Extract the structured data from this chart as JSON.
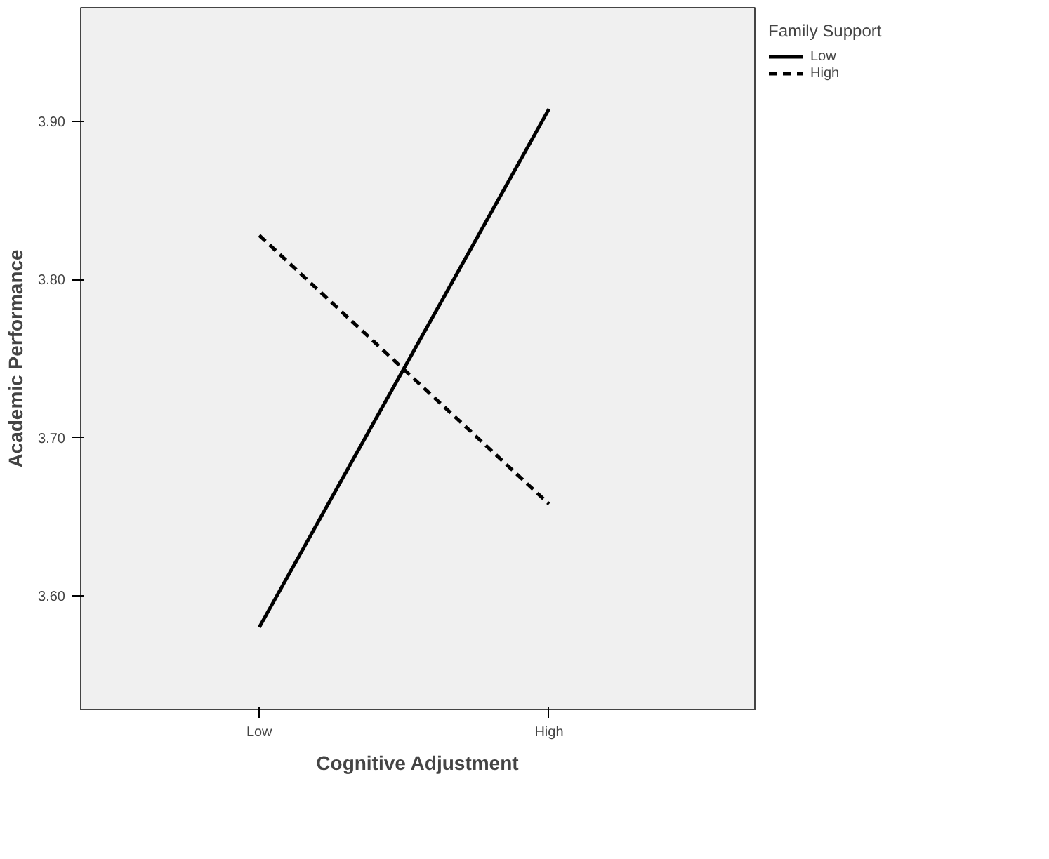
{
  "chart_data": {
    "type": "line",
    "xlabel": "Cognitive Adjustment",
    "ylabel": "Academic Performance",
    "legend_title": "Family Support",
    "categories": [
      "Low",
      "High"
    ],
    "series": [
      {
        "name": "Low",
        "color": "#000000",
        "line_style": "solid",
        "values": [
          3.58,
          3.908
        ]
      },
      {
        "name": "High",
        "color": "#000000",
        "line_style": "dashed",
        "values": [
          3.828,
          3.658
        ]
      }
    ],
    "ylim": [
      3.528,
      3.972
    ],
    "yticks": [
      {
        "value": 3.6,
        "label": "3.60"
      },
      {
        "value": 3.7,
        "label": "3.70"
      },
      {
        "value": 3.8,
        "label": "3.80"
      },
      {
        "value": 3.9,
        "label": "3.90"
      }
    ],
    "grid": false,
    "legend": "top right",
    "marker": "none"
  }
}
